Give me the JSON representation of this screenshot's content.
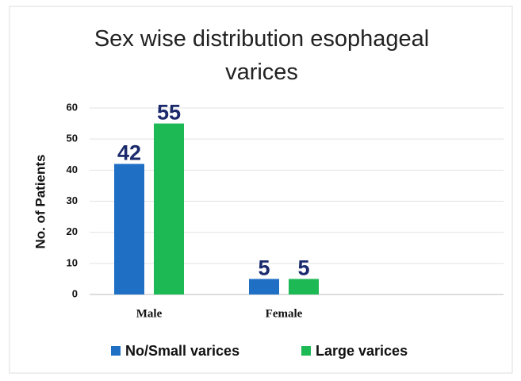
{
  "chart_data": {
    "type": "bar",
    "title": "Sex wise distribution esophageal varices",
    "y_label": "No. of Patients",
    "categories": [
      "Male",
      "Female",
      null
    ],
    "series": [
      {
        "name": "No/Small varices",
        "color": "#1f6fc5",
        "values": [
          42,
          5,
          null
        ]
      },
      {
        "name": "Large varices",
        "color": "#1db954",
        "values": [
          55,
          5,
          null
        ]
      }
    ],
    "ylim": [
      0,
      60
    ],
    "yticks": [
      0,
      10,
      20,
      30,
      40,
      50,
      60
    ],
    "grid": true,
    "legend": "bottom"
  }
}
